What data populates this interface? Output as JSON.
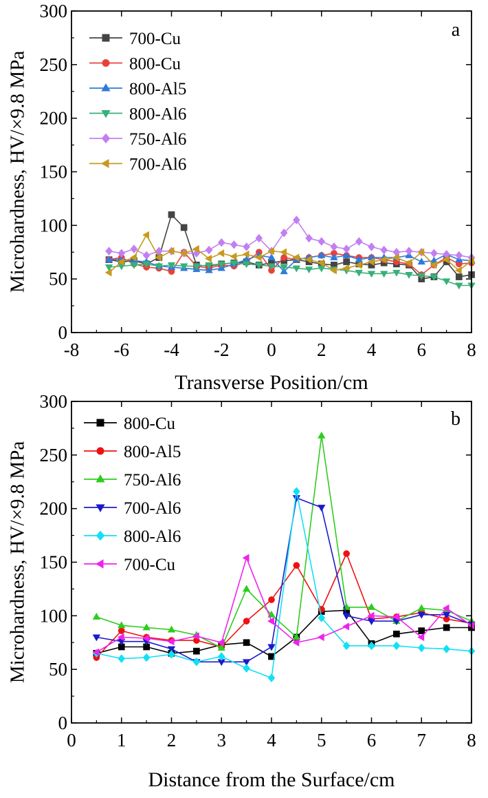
{
  "chart_data": [
    {
      "type": "line",
      "panel_label": "a",
      "xlabel": "Transverse Position/cm",
      "ylabel": "Microhardness, HV/×9.8 MPa",
      "xlim": [
        -8,
        8
      ],
      "ylim": [
        0,
        300
      ],
      "xticks": [
        -8,
        -6,
        -4,
        -2,
        0,
        2,
        4,
        6,
        8
      ],
      "yticks": [
        0,
        50,
        100,
        150,
        200,
        250,
        300
      ],
      "legend_position": "top-left",
      "series": [
        {
          "name": "700-Cu",
          "color": "#444444",
          "marker": "square",
          "x": [
            -6.5,
            -6,
            -5.5,
            -5,
            -4.5,
            -4,
            -3.5,
            -3,
            -2.5,
            -2,
            -1.5,
            -1,
            -0.5,
            0,
            0.5,
            1,
            1.5,
            2,
            2.5,
            3,
            3.5,
            4,
            4.5,
            5,
            5.5,
            6,
            6.5,
            7,
            7.5,
            8
          ],
          "y": [
            68,
            66,
            67,
            64,
            70,
            110,
            98,
            63,
            62,
            64,
            65,
            66,
            63,
            65,
            67,
            68,
            66,
            64,
            63,
            66,
            64,
            63,
            65,
            64,
            63,
            50,
            52,
            66,
            52,
            54
          ]
        },
        {
          "name": "800-Cu",
          "color": "#e8413b",
          "marker": "circle",
          "x": [
            -6.5,
            -6,
            -5.5,
            -5,
            -4.5,
            -4,
            -3.5,
            -3,
            -2.5,
            -2,
            -1.5,
            -1,
            -0.5,
            0,
            0.5,
            1,
            1.5,
            2,
            2.5,
            3,
            3.5,
            4,
            4.5,
            5,
            5.5,
            6,
            6.5,
            7,
            7.5,
            8
          ],
          "y": [
            68,
            70,
            64,
            61,
            60,
            57,
            75,
            62,
            60,
            63,
            62,
            66,
            75,
            58,
            70,
            68,
            70,
            72,
            74,
            72,
            70,
            70,
            68,
            66,
            64,
            54,
            63,
            70,
            64,
            65
          ]
        },
        {
          "name": "800-Al5",
          "color": "#2f7ad9",
          "marker": "triangle-up",
          "x": [
            -6.5,
            -6,
            -5.5,
            -5,
            -4.5,
            -4,
            -3.5,
            -3,
            -2.5,
            -2,
            -1.5,
            -1,
            -0.5,
            0,
            0.5,
            1,
            1.5,
            2,
            2.5,
            3,
            3.5,
            4,
            4.5,
            5,
            5.5,
            6,
            6.5,
            7,
            7.5,
            8
          ],
          "y": [
            68,
            68,
            67,
            66,
            62,
            61,
            60,
            59,
            58,
            60,
            64,
            68,
            72,
            70,
            57,
            68,
            70,
            72,
            70,
            72,
            68,
            70,
            70,
            70,
            72,
            66,
            67,
            73,
            68,
            67
          ]
        },
        {
          "name": "800-Al6",
          "color": "#37b07a",
          "marker": "triangle-down",
          "x": [
            -6.5,
            -6,
            -5.5,
            -5,
            -4.5,
            -4,
            -3.5,
            -3,
            -2.5,
            -2,
            -1.5,
            -1,
            -0.5,
            0,
            0.5,
            1,
            1.5,
            2,
            2.5,
            3,
            3.5,
            4,
            4.5,
            5,
            5.5,
            6,
            6.5,
            7,
            7.5,
            8
          ],
          "y": [
            61,
            62,
            63,
            64,
            62,
            63,
            62,
            62,
            63,
            64,
            65,
            64,
            63,
            62,
            61,
            60,
            59,
            60,
            59,
            58,
            56,
            55,
            55,
            56,
            54,
            53,
            52,
            48,
            44,
            44
          ]
        },
        {
          "name": "750-Al6",
          "color": "#c27ff2",
          "marker": "diamond",
          "x": [
            -6.5,
            -6,
            -5.5,
            -5,
            -4.5,
            -4,
            -3.5,
            -3,
            -2.5,
            -2,
            -1.5,
            -1,
            -0.5,
            0,
            0.5,
            1,
            1.5,
            2,
            2.5,
            3,
            3.5,
            4,
            4.5,
            5,
            5.5,
            6,
            6.5,
            7,
            7.5,
            8
          ],
          "y": [
            76,
            74,
            78,
            72,
            76,
            76,
            74,
            74,
            77,
            84,
            82,
            80,
            88,
            76,
            93,
            105,
            88,
            85,
            80,
            78,
            85,
            80,
            77,
            75,
            76,
            75,
            74,
            73,
            72,
            70
          ]
        },
        {
          "name": "700-Al6",
          "color": "#c79a1e",
          "marker": "triangle-left",
          "x": [
            -6.5,
            -6,
            -5.5,
            -5,
            -4.5,
            -4,
            -3.5,
            -3,
            -2.5,
            -2,
            -1.5,
            -1,
            -0.5,
            0,
            0.5,
            1,
            1.5,
            2,
            2.5,
            3,
            3.5,
            4,
            4.5,
            5,
            5.5,
            6,
            6.5,
            7,
            7.5,
            8
          ],
          "y": [
            56,
            66,
            70,
            91,
            70,
            76,
            74,
            78,
            69,
            74,
            71,
            73,
            70,
            76,
            75,
            70,
            68,
            65,
            58,
            60,
            63,
            66,
            68,
            70,
            65,
            75,
            63,
            68,
            58,
            67
          ]
        }
      ]
    },
    {
      "type": "line",
      "panel_label": "b",
      "xlabel": "Distance from the Surface/cm",
      "ylabel": "Microhardness, HV/×9.8 MPa",
      "xlim": [
        0,
        8
      ],
      "ylim": [
        0,
        300
      ],
      "xticks": [
        0,
        1,
        2,
        3,
        4,
        5,
        6,
        7,
        8
      ],
      "yticks": [
        0,
        50,
        100,
        150,
        200,
        250,
        300
      ],
      "legend_position": "top-left",
      "series": [
        {
          "name": "800-Cu",
          "color": "#000000",
          "marker": "square",
          "x": [
            0.5,
            1,
            1.5,
            2,
            2.5,
            3,
            3.5,
            4,
            4.5,
            5,
            5.5,
            6,
            6.5,
            7,
            7.5,
            8
          ],
          "y": [
            65,
            71,
            71,
            65,
            67,
            73,
            75,
            62,
            80,
            104,
            105,
            74,
            83,
            86,
            89,
            89
          ]
        },
        {
          "name": "800-Al5",
          "color": "#ee1111",
          "marker": "circle",
          "x": [
            0.5,
            1,
            1.5,
            2,
            2.5,
            3,
            3.5,
            4,
            4.5,
            5,
            5.5,
            6,
            6.5,
            7,
            7.5,
            8
          ],
          "y": [
            61,
            86,
            80,
            77,
            77,
            71,
            95,
            115,
            147,
            106,
            158,
            97,
            99,
            103,
            97,
            93
          ]
        },
        {
          "name": "750-Al6",
          "color": "#2ecc1e",
          "marker": "triangle-up",
          "x": [
            0.5,
            1,
            1.5,
            2,
            2.5,
            3,
            3.5,
            4,
            4.5,
            5,
            5.5,
            6,
            6.5,
            7,
            7.5,
            8
          ],
          "y": [
            99,
            91,
            89,
            87,
            82,
            70,
            125,
            101,
            80,
            268,
            108,
            108,
            95,
            107,
            105,
            95
          ]
        },
        {
          "name": "700-Al6",
          "color": "#1a1acc",
          "marker": "triangle-down",
          "x": [
            0.5,
            1,
            1.5,
            2,
            2.5,
            3,
            3.5,
            4,
            4.5,
            5,
            5.5,
            6,
            6.5,
            7,
            7.5,
            8
          ],
          "y": [
            80,
            76,
            76,
            69,
            57,
            57,
            57,
            71,
            210,
            201,
            100,
            95,
            95,
            101,
            101,
            92
          ]
        },
        {
          "name": "800-Al6",
          "color": "#11e0f5",
          "marker": "diamond",
          "x": [
            0.5,
            1,
            1.5,
            2,
            2.5,
            3,
            3.5,
            4,
            4.5,
            5,
            5.5,
            6,
            6.5,
            7,
            7.5,
            8
          ],
          "y": [
            65,
            60,
            61,
            64,
            57,
            62,
            51,
            42,
            216,
            98,
            72,
            72,
            72,
            70,
            69,
            67
          ]
        },
        {
          "name": "700-Cu",
          "color": "#ee22ee",
          "marker": "triangle-left",
          "x": [
            0.5,
            1,
            1.5,
            2,
            2.5,
            3,
            3.5,
            4,
            4.5,
            5,
            5.5,
            6,
            6.5,
            7,
            7.5,
            8
          ],
          "y": [
            66,
            80,
            79,
            76,
            81,
            75,
            154,
            95,
            75,
            80,
            90,
            100,
            99,
            80,
            107,
            91
          ]
        }
      ]
    }
  ]
}
